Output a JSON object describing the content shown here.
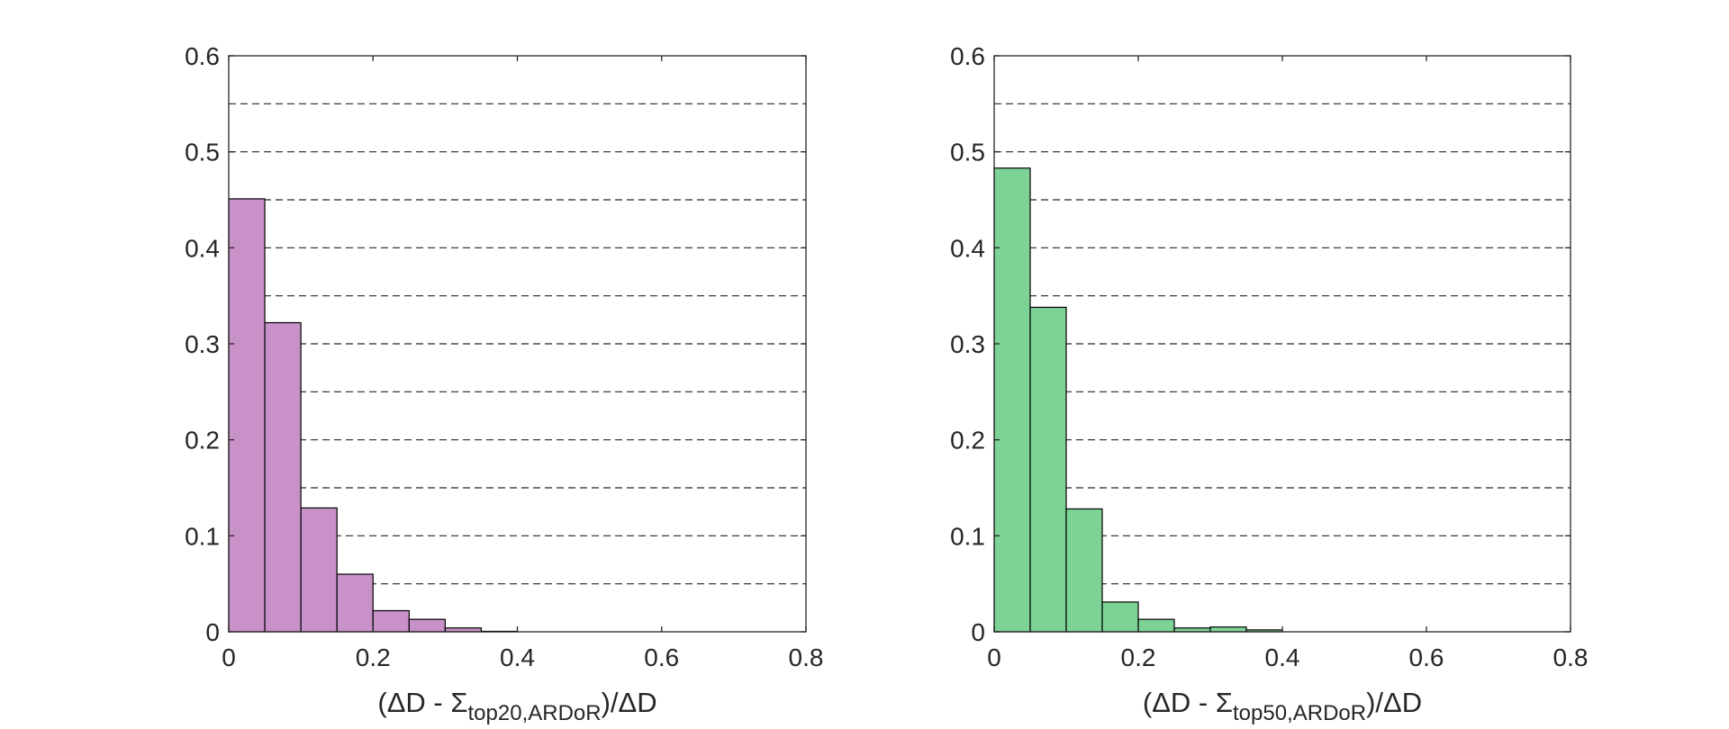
{
  "chart_data": [
    {
      "type": "bar",
      "title": "",
      "xlabel": {
        "prefix": "(ΔD - Σ",
        "subscript": "top20,ARDoR",
        "suffix": ")/ΔD"
      },
      "ylabel": "",
      "xlim": [
        0,
        0.8
      ],
      "ylim": [
        0,
        0.6
      ],
      "x_ticks": [
        "0",
        "0.2",
        "0.4",
        "0.6",
        "0.8"
      ],
      "y_ticks": [
        "0",
        "0.1",
        "0.2",
        "0.3",
        "0.4",
        "0.5",
        "0.6"
      ],
      "grid": "horizontal dashed every 0.05",
      "bin_edges": [
        0,
        0.05,
        0.1,
        0.15,
        0.2,
        0.25,
        0.3,
        0.35,
        0.4,
        0.45,
        0.5,
        0.55,
        0.6,
        0.65,
        0.7,
        0.75,
        0.8
      ],
      "values": [
        0.451,
        0.322,
        0.129,
        0.06,
        0.022,
        0.013,
        0.004,
        0.0005,
        0,
        0,
        0,
        0,
        0,
        0,
        0,
        0
      ],
      "color": "#c891c8"
    },
    {
      "type": "bar",
      "title": "",
      "xlabel": {
        "prefix": "(ΔD - Σ",
        "subscript": "top50,ARDoR",
        "suffix": ")/ΔD"
      },
      "ylabel": "",
      "xlim": [
        0,
        0.8
      ],
      "ylim": [
        0,
        0.6
      ],
      "x_ticks": [
        "0",
        "0.2",
        "0.4",
        "0.6",
        "0.8"
      ],
      "y_ticks": [
        "0",
        "0.1",
        "0.2",
        "0.3",
        "0.4",
        "0.5",
        "0.6"
      ],
      "grid": "horizontal dashed every 0.05",
      "bin_edges": [
        0,
        0.05,
        0.1,
        0.15,
        0.2,
        0.25,
        0.3,
        0.35,
        0.4,
        0.45,
        0.5,
        0.55,
        0.6,
        0.65,
        0.7,
        0.75,
        0.8
      ],
      "values": [
        0.483,
        0.338,
        0.128,
        0.031,
        0.013,
        0.004,
        0.005,
        0.002,
        0,
        0,
        0,
        0,
        0,
        0,
        0,
        0
      ],
      "color": "#7dd295"
    }
  ]
}
